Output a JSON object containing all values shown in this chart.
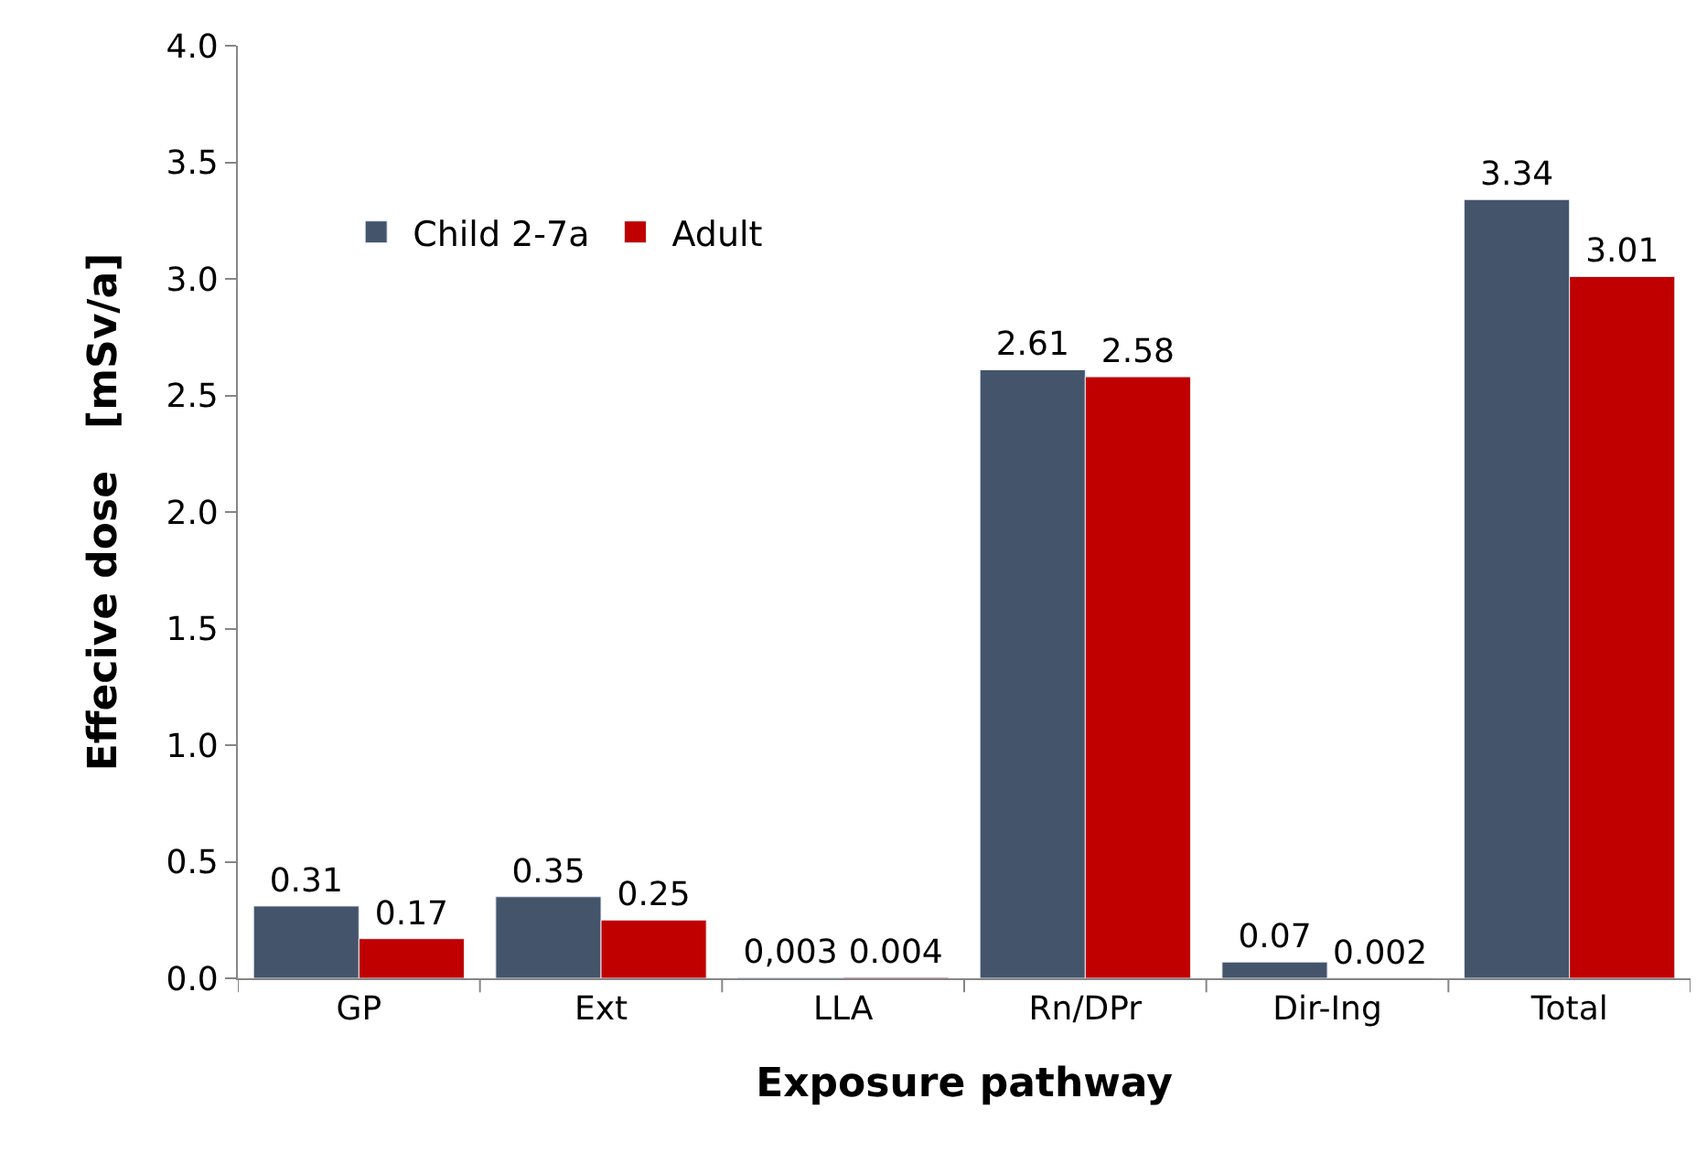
{
  "chart_data": {
    "type": "bar",
    "xlabel": "Exposure pathway",
    "ylabel": "Effecive dose   [mSv/a]",
    "categories": [
      "GP",
      "Ext",
      "LLA",
      "Rn/DPr",
      "Dir-Ing",
      "Total"
    ],
    "series": [
      {
        "name": "Child 2-7a",
        "color": "#44546a",
        "values": [
          0.31,
          0.35,
          0.003,
          2.61,
          0.07,
          3.34
        ],
        "value_labels": [
          "0.31",
          "0.35",
          "0,003",
          "2.61",
          "0.07",
          "3.34"
        ]
      },
      {
        "name": "Adult",
        "color": "#c00000",
        "values": [
          0.17,
          0.25,
          0.004,
          2.58,
          0.002,
          3.01
        ],
        "value_labels": [
          "0.17",
          "0.25",
          "0.004",
          "2.58",
          "0.002",
          "3.01"
        ]
      }
    ],
    "ylim": [
      0,
      4
    ],
    "yticks": [
      {
        "value": 0,
        "label": "0.0"
      },
      {
        "value": 0.5,
        "label": "0.5"
      },
      {
        "value": 1,
        "label": "1.0"
      },
      {
        "value": 1.5,
        "label": "1.5"
      },
      {
        "value": 2,
        "label": "2.0"
      },
      {
        "value": 2.5,
        "label": "2.5"
      },
      {
        "value": 3,
        "label": "3.0"
      },
      {
        "value": 3.5,
        "label": "3.5"
      },
      {
        "value": 4,
        "label": "4.0"
      }
    ],
    "legend": "top left"
  }
}
